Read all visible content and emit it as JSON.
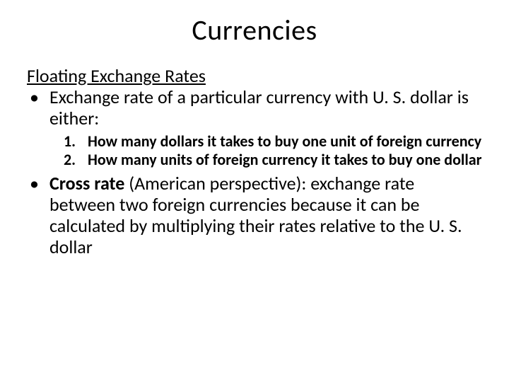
{
  "slide": {
    "title": "Currencies",
    "subheading": "Floating Exchange Rates",
    "bullet1": "Exchange rate of a particular currency with U. S. dollar is either:",
    "numbered": [
      {
        "num": "1.",
        "text": "How many dollars it takes to buy one unit of foreign currency"
      },
      {
        "num": "2.",
        "text": "How many units of foreign currency it takes to buy one dollar"
      }
    ],
    "bullet2_bold": "Cross rate",
    "bullet2_rest": " (American perspective): exchange rate between two foreign currencies because it can be calculated by multiplying their rates relative to the U. S. dollar"
  },
  "style": {
    "background": "#ffffff",
    "text_color": "#000000",
    "title_fontsize": 40,
    "body_fontsize": 26,
    "numbered_fontsize": 22
  }
}
